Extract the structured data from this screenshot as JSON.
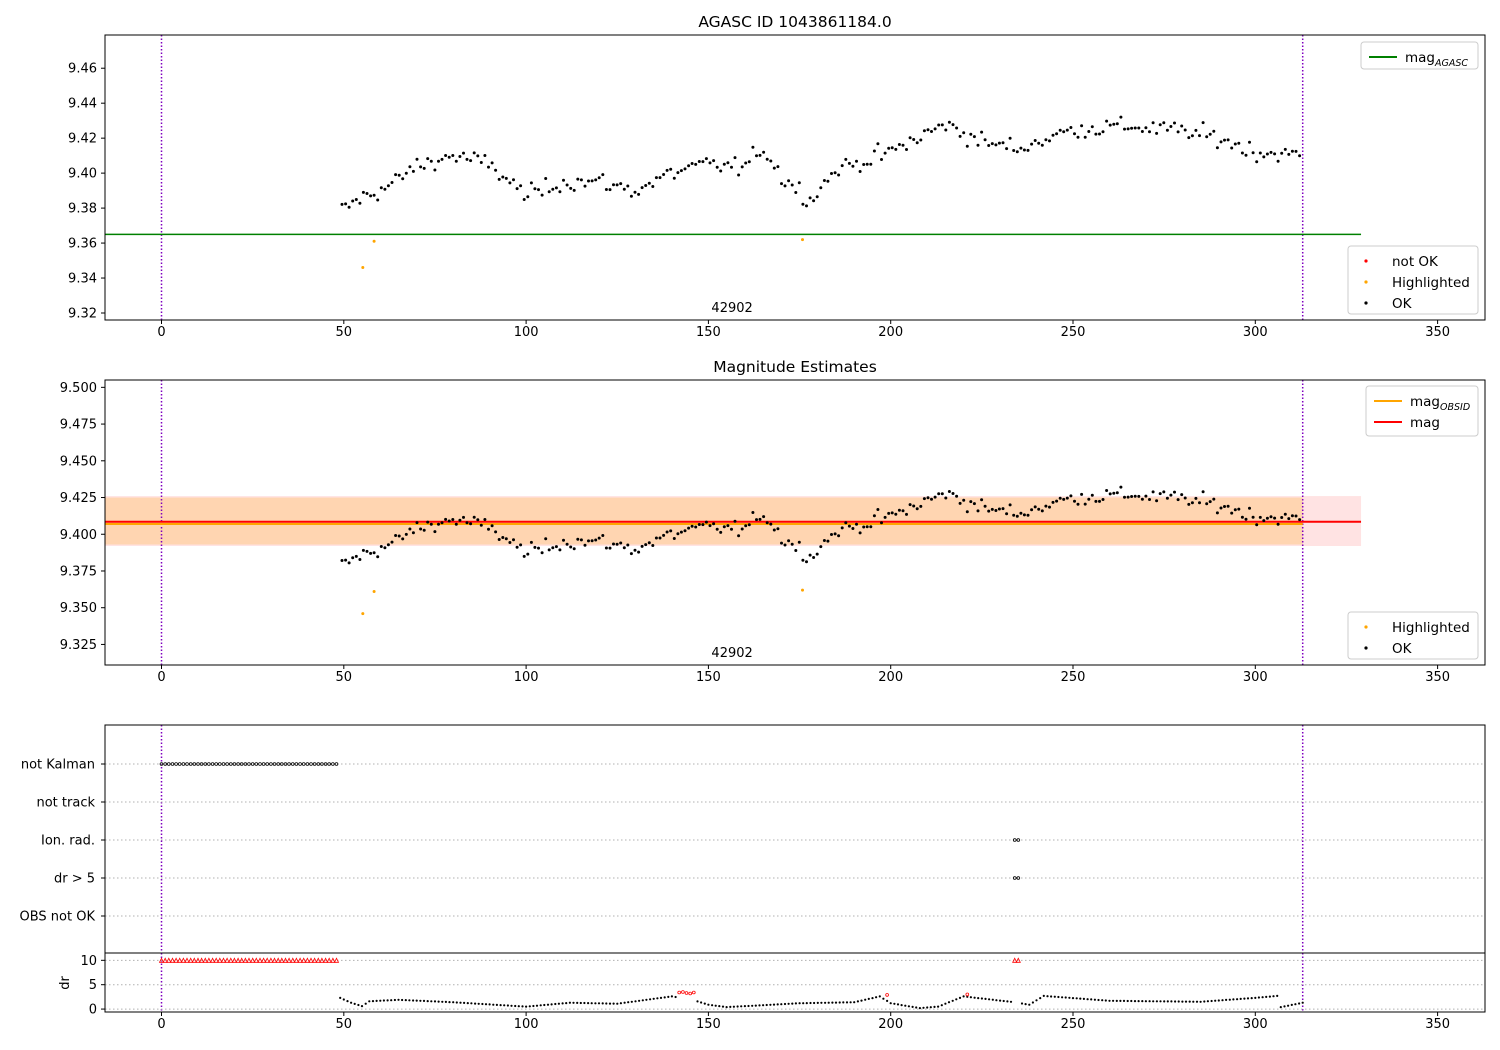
{
  "figure": {
    "title": "AGASC ID 1043861184.0"
  },
  "chart_data": [
    {
      "type": "scatter",
      "title": "AGASC ID 1043861184.0",
      "xlabel": "",
      "ylabel": "",
      "xlim": [
        -15.5,
        363
      ],
      "ylim": [
        9.316,
        9.479
      ],
      "xticks": [
        0,
        50,
        100,
        150,
        200,
        250,
        300,
        350
      ],
      "yticks": [
        9.32,
        9.34,
        9.36,
        9.38,
        9.4,
        9.42,
        9.44,
        9.46
      ],
      "ytick_labels": [
        "9.32",
        "9.34",
        "9.36",
        "9.38",
        "9.40",
        "9.42",
        "9.44",
        "9.46"
      ],
      "obs_boundaries": [
        0,
        313
      ],
      "obs_label": {
        "text": "42902",
        "x": 156.5
      },
      "reference_lines": [
        {
          "name": "mag_AGASC",
          "y": 9.365,
          "x": [
            -15.5,
            329
          ],
          "color": "#008000"
        }
      ],
      "legend_position": "top-right",
      "legend": [
        {
          "label": "mag",
          "sub": "AGASC",
          "color": "#008000",
          "kind": "line"
        }
      ],
      "legend2_position": "bottom-right",
      "legend2": [
        {
          "label": "not OK",
          "color": "#ff0000",
          "kind": "marker"
        },
        {
          "label": "Highlighted",
          "color": "#ffa500",
          "kind": "marker"
        },
        {
          "label": "OK",
          "color": "#000000",
          "kind": "marker"
        }
      ],
      "series": [
        {
          "name": "Highlighted",
          "color": "#ffa500",
          "x": [
            55.2,
            58.3,
            175.8
          ],
          "y": [
            9.346,
            9.361,
            9.362
          ]
        }
      ]
    },
    {
      "type": "scatter",
      "title": "Magnitude Estimates",
      "xlabel": "",
      "ylabel": "",
      "xlim": [
        -15.5,
        363
      ],
      "ylim": [
        9.311,
        9.505
      ],
      "xticks": [
        0,
        50,
        100,
        150,
        200,
        250,
        300,
        350
      ],
      "yticks": [
        9.325,
        9.35,
        9.375,
        9.4,
        9.425,
        9.45,
        9.475,
        9.5
      ],
      "ytick_labels": [
        "9.325",
        "9.350",
        "9.375",
        "9.400",
        "9.425",
        "9.450",
        "9.475",
        "9.500"
      ],
      "obs_boundaries": [
        0,
        313
      ],
      "obs_label": {
        "text": "42902",
        "x": 156.5
      },
      "bands": [
        {
          "y0": 9.392,
          "y1": 9.426,
          "x": [
            -15.5,
            329
          ],
          "color": "#ff0000",
          "opacity": 0.11
        },
        {
          "y0": 9.393,
          "y1": 9.425,
          "x": [
            -15.5,
            313
          ],
          "color": "#ffa500",
          "opacity": 0.22
        }
      ],
      "reference_lines": [
        {
          "name": "mag",
          "y": 9.4085,
          "x": [
            -15.5,
            329
          ],
          "color": "#ff0000"
        },
        {
          "name": "mag_OBSID",
          "y": 9.407,
          "x": [
            -15.5,
            313
          ],
          "color": "#ffa500"
        }
      ],
      "legend_position": "top-right",
      "legend": [
        {
          "label": "mag",
          "sub": "OBSID",
          "color": "#ffa500",
          "kind": "line"
        },
        {
          "label": "mag",
          "sub": "",
          "color": "#ff0000",
          "kind": "line"
        }
      ],
      "legend2_position": "bottom-right",
      "legend2": [
        {
          "label": "Highlighted",
          "color": "#ffa500",
          "kind": "marker"
        },
        {
          "label": "OK",
          "color": "#000000",
          "kind": "marker"
        }
      ],
      "series": [
        {
          "name": "Highlighted",
          "color": "#ffa500",
          "x": [
            55.2,
            58.3,
            175.8
          ],
          "y": [
            9.346,
            9.361,
            9.362
          ]
        }
      ]
    },
    {
      "type": "scatter",
      "title": "",
      "xlabel": "",
      "ylabel": "",
      "xlim": [
        -15.5,
        363
      ],
      "obs_boundaries": [
        0,
        313
      ],
      "categories": [
        "not Kalman",
        "not track",
        "Ion. rad.",
        "dr > 5",
        "OBS not OK"
      ],
      "flags": [
        {
          "category": "not Kalman",
          "ranges": [
            [
              0,
              48
            ]
          ],
          "color": "#000000"
        },
        {
          "category": "Ion. rad.",
          "ranges": [
            [
              234,
              235
            ]
          ],
          "color": "#000000"
        },
        {
          "category": "dr > 5",
          "ranges": [
            [
              234,
              235
            ]
          ],
          "color": "#000000"
        }
      ]
    },
    {
      "type": "scatter",
      "title": "",
      "xlabel": "",
      "ylabel": "dr",
      "xlim": [
        -15.5,
        363
      ],
      "ylim": [
        -0.6,
        11.5
      ],
      "xticks": [
        0,
        50,
        100,
        150,
        200,
        250,
        300,
        350
      ],
      "yticks": [
        0,
        5,
        10
      ],
      "ytick_labels": [
        "0",
        "5",
        "10"
      ],
      "obs_boundaries": [
        0,
        313
      ],
      "clipped": [
        {
          "x0": 0,
          "x1": 48,
          "y": 10,
          "color": "#ff0000"
        },
        {
          "x0": 234,
          "x1": 235,
          "y": 10,
          "color": "#ff0000"
        }
      ],
      "red_points": [
        {
          "x": [
            142,
            143,
            144,
            145,
            146
          ],
          "y": [
            3.4,
            3.5,
            3.3,
            3.2,
            3.4
          ]
        },
        {
          "x": [
            199,
            221
          ],
          "y": [
            2.9,
            3.0
          ]
        }
      ],
      "dr_profile": [
        [
          49,
          2.3
        ],
        [
          52,
          1.3
        ],
        [
          55,
          0.6
        ],
        [
          57,
          1.6
        ],
        [
          65,
          1.9
        ],
        [
          80,
          1.4
        ],
        [
          100,
          0.5
        ],
        [
          112,
          1.3
        ],
        [
          125,
          1.1
        ],
        [
          140,
          2.6
        ],
        [
          146,
          1.8
        ],
        [
          150,
          0.9
        ],
        [
          155,
          0.4
        ],
        [
          175,
          1.2
        ],
        [
          190,
          1.4
        ],
        [
          197,
          2.6
        ],
        [
          200,
          1.2
        ],
        [
          208,
          0.2
        ],
        [
          213,
          0.5
        ],
        [
          220,
          2.6
        ],
        [
          234,
          1.4
        ],
        [
          238,
          0.9
        ],
        [
          242,
          2.7
        ],
        [
          260,
          1.7
        ],
        [
          285,
          1.5
        ],
        [
          300,
          2.3
        ],
        [
          306,
          2.7
        ],
        [
          307,
          0.4
        ],
        [
          313,
          1.3
        ]
      ]
    }
  ]
}
